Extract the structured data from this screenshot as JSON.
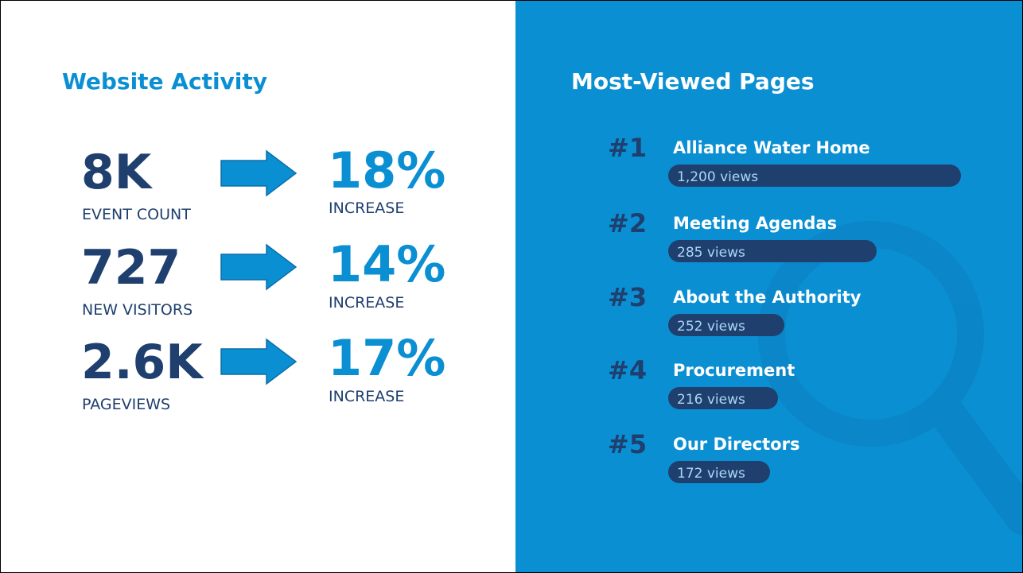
{
  "left": {
    "title": "Website Activity",
    "metrics": [
      {
        "value": "8K",
        "label": "EVENT COUNT",
        "change": "18%",
        "change_label": "INCREASE"
      },
      {
        "value": "727",
        "label": "NEW VISITORS",
        "change": "14%",
        "change_label": "INCREASE"
      },
      {
        "value": "2.6K",
        "label": "PAGEVIEWS",
        "change": "17%",
        "change_label": "INCREASE"
      }
    ]
  },
  "right": {
    "title": "Most-Viewed Pages",
    "pages": [
      {
        "rank": "#1",
        "name": "Alliance Water Home",
        "views": "1,200 views"
      },
      {
        "rank": "#2",
        "name": "Meeting Agendas",
        "views": "285 views"
      },
      {
        "rank": "#3",
        "name": "About the Authority",
        "views": "252 views"
      },
      {
        "rank": "#4",
        "name": "Procurement",
        "views": "216 views"
      },
      {
        "rank": "#5",
        "name": "Our Directors",
        "views": "172 views"
      }
    ]
  }
}
